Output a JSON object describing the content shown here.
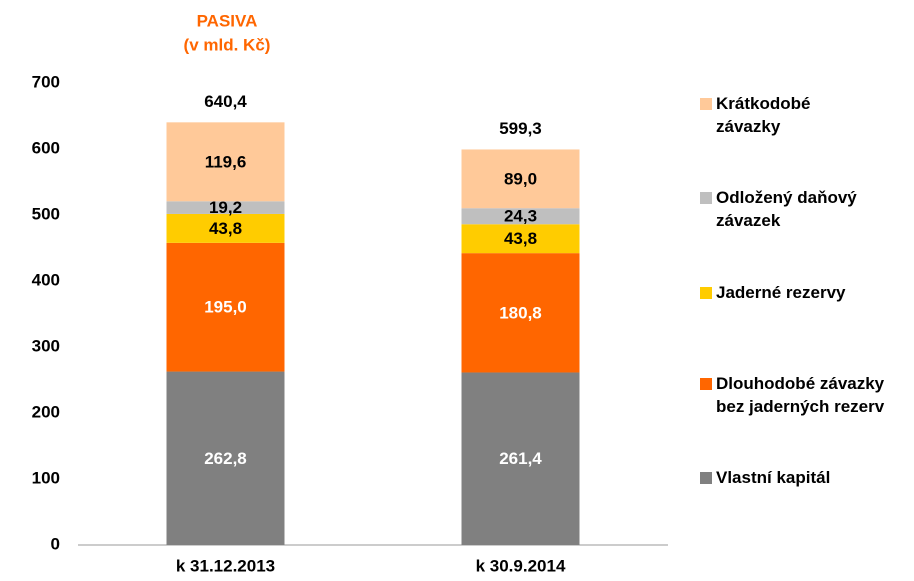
{
  "chart_data": {
    "type": "stacked_bar",
    "title": "PASIVA",
    "subtitle": "(v mld. Kč)",
    "categories": [
      "k 31.12.2013",
      "k 30.9.2014"
    ],
    "series": [
      {
        "name": "Vlastní kapitál",
        "color": "#808080",
        "label_color": "#ffffff",
        "values": [
          262.8,
          261.4
        ],
        "value_labels": [
          "262,8",
          "261,4"
        ]
      },
      {
        "name": "Dlouhodobé závazky bez jaderných rezerv",
        "color": "#ff6600",
        "label_color": "#ffffff",
        "values": [
          195.0,
          180.8
        ],
        "value_labels": [
          "195,0",
          "180,8"
        ]
      },
      {
        "name": "Jaderné rezervy",
        "color": "#ffcc00",
        "label_color": "#000000",
        "values": [
          43.8,
          43.8
        ],
        "value_labels": [
          "43,8",
          "43,8"
        ]
      },
      {
        "name": "Odložený daňový závazek",
        "color": "#bfbfbf",
        "label_color": "#000000",
        "values": [
          19.2,
          24.3
        ],
        "value_labels": [
          "19,2",
          "24,3"
        ]
      },
      {
        "name": "Krátkodobé závazky",
        "color": "#ffc999",
        "label_color": "#000000",
        "values": [
          119.6,
          89.0
        ],
        "value_labels": [
          "119,6",
          "89,0"
        ]
      }
    ],
    "totals": [
      640.4,
      599.3
    ],
    "total_labels": [
      "640,4",
      "599,3"
    ],
    "ylim": [
      0,
      700
    ],
    "yticks": [
      0,
      100,
      200,
      300,
      400,
      500,
      600,
      700
    ],
    "grid": false,
    "legend": "right"
  }
}
